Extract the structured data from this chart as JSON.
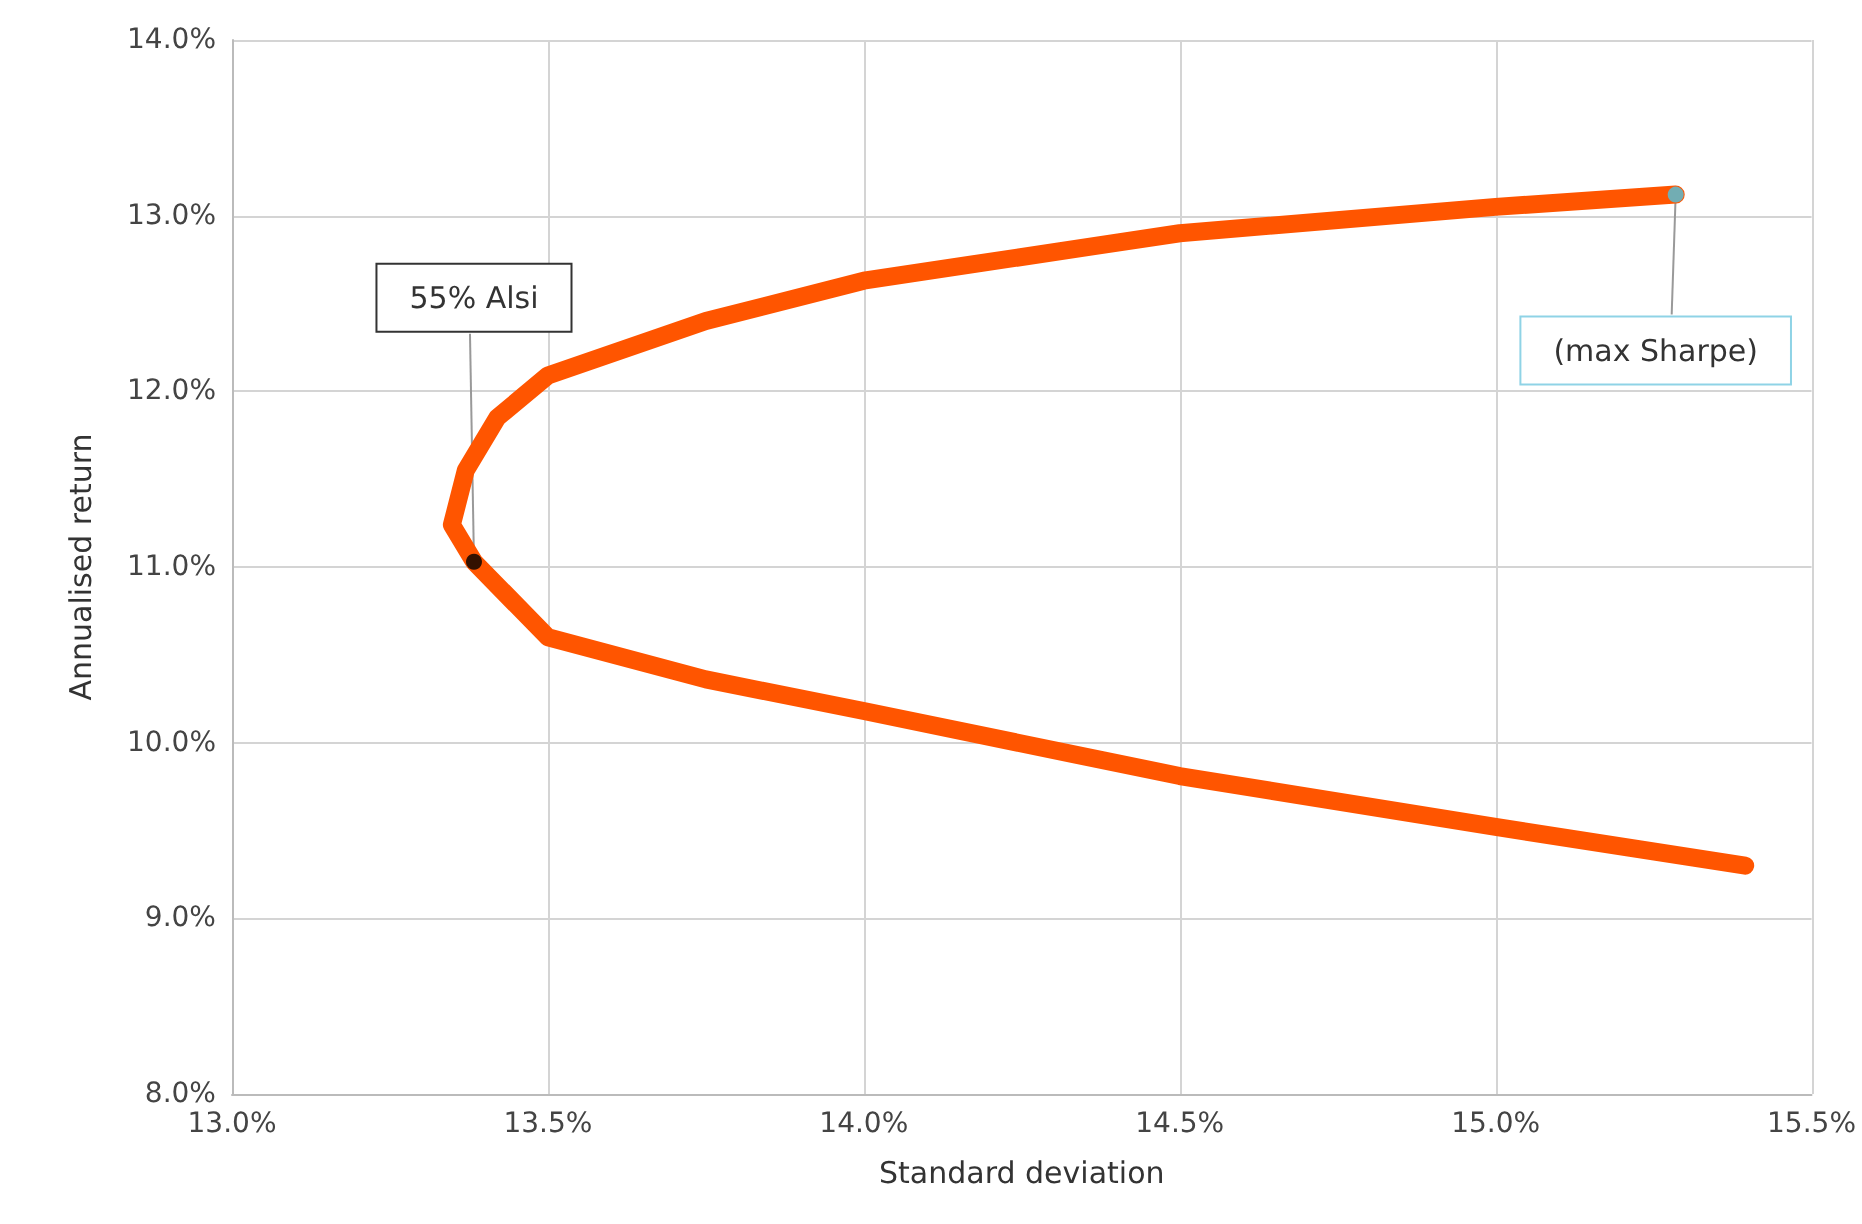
{
  "chart_data": {
    "type": "line",
    "xlabel": "Standard deviation",
    "ylabel": "Annualised return",
    "xlim": [
      13.0,
      15.5
    ],
    "xticks": [
      {
        "value": 13.0,
        "label": "13.0%"
      },
      {
        "value": 13.5,
        "label": "13.5%"
      },
      {
        "value": 14.0,
        "label": "14.0%"
      },
      {
        "value": 14.5,
        "label": "14.5%"
      },
      {
        "value": 15.0,
        "label": "15.0%"
      },
      {
        "value": 15.5,
        "label": "15.5%"
      }
    ],
    "ylim": [
      8.0,
      14.0
    ],
    "yticks": [
      {
        "value": 8.0,
        "label": "8.0%"
      },
      {
        "value": 9.0,
        "label": "9.0%"
      },
      {
        "value": 10.0,
        "label": "10.0%"
      },
      {
        "value": 11.0,
        "label": "11.0%"
      },
      {
        "value": 12.0,
        "label": "12.0%"
      },
      {
        "value": 13.0,
        "label": "13.0%"
      },
      {
        "value": 14.0,
        "label": "14.0%"
      }
    ],
    "grid": true,
    "series": [
      {
        "color": "#ff5500",
        "x": [
          15.285,
          15.0,
          14.5,
          14.0,
          13.75,
          13.5,
          13.42,
          13.37,
          13.348,
          13.383,
          13.5,
          13.75,
          14.0,
          14.5,
          15.0,
          15.395
        ],
        "values": [
          13.12,
          13.05,
          12.9,
          12.63,
          12.4,
          12.09,
          11.85,
          11.55,
          11.24,
          11.03,
          10.6,
          10.36,
          10.18,
          9.81,
          9.52,
          9.3
        ]
      },
      {
        "type": "scatter",
        "color": "#000000",
        "x": [
          13.383
        ],
        "values": [
          11.03
        ]
      },
      {
        "type": "scatter",
        "color": "#4fc3e0",
        "x": [
          15.285
        ],
        "values": [
          13.12
        ]
      }
    ],
    "annotations": [
      {
        "text": "55% Alsi",
        "x": 13.383,
        "y": 11.03
      },
      {
        "text": "(max Sharpe)",
        "x": 15.285,
        "y": 13.12
      }
    ]
  }
}
